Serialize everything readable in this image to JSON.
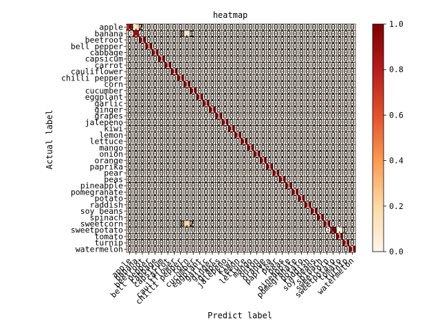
{
  "chart_data": {
    "type": "heatmap",
    "title": "heatmap",
    "xlabel": "Predict label",
    "ylabel": "Actual label",
    "labels": [
      "apple",
      "banana",
      "beetroot",
      "bell pepper",
      "cabbage",
      "capsicum",
      "carrot",
      "cauliflower",
      "chilli pepper",
      "corn",
      "cucumber",
      "eggplant",
      "garlic",
      "ginger",
      "grapes",
      "jalepeno",
      "kiwi",
      "lemon",
      "lettuce",
      "mango",
      "onion",
      "orange",
      "paprika",
      "pear",
      "peas",
      "pineapple",
      "pomegranate",
      "potato",
      "raddish",
      "soy beans",
      "spinach",
      "sweetcorn",
      "sweetpotato",
      "tomato",
      "turnip",
      "watermelon"
    ],
    "diagonal": [
      0.8,
      0.9,
      1,
      1,
      1,
      1,
      1,
      1,
      1,
      1,
      1,
      1,
      1,
      1,
      1,
      1,
      1,
      1,
      1,
      1,
      1,
      1,
      1,
      1,
      1,
      1,
      1,
      1,
      1,
      1,
      1,
      1,
      0.9,
      1,
      1,
      1
    ],
    "offdiagonal": [
      {
        "row": 0,
        "col": 1,
        "value": 0.2
      },
      {
        "row": 1,
        "col": 9,
        "value": 0.1
      },
      {
        "row": 31,
        "col": 9,
        "value": 0.2
      },
      {
        "row": 32,
        "col": 33,
        "value": 0.1
      }
    ],
    "colorbar": {
      "min": 0,
      "max": 1,
      "ticks": [
        "0.0",
        "0.2",
        "0.4",
        "0.6",
        "0.8",
        "1.0"
      ]
    },
    "colormap": [
      "#fff5eb",
      "#fdd9a6",
      "#fc9a52",
      "#e3502b",
      "#b71c1c",
      "#7f0000"
    ]
  }
}
